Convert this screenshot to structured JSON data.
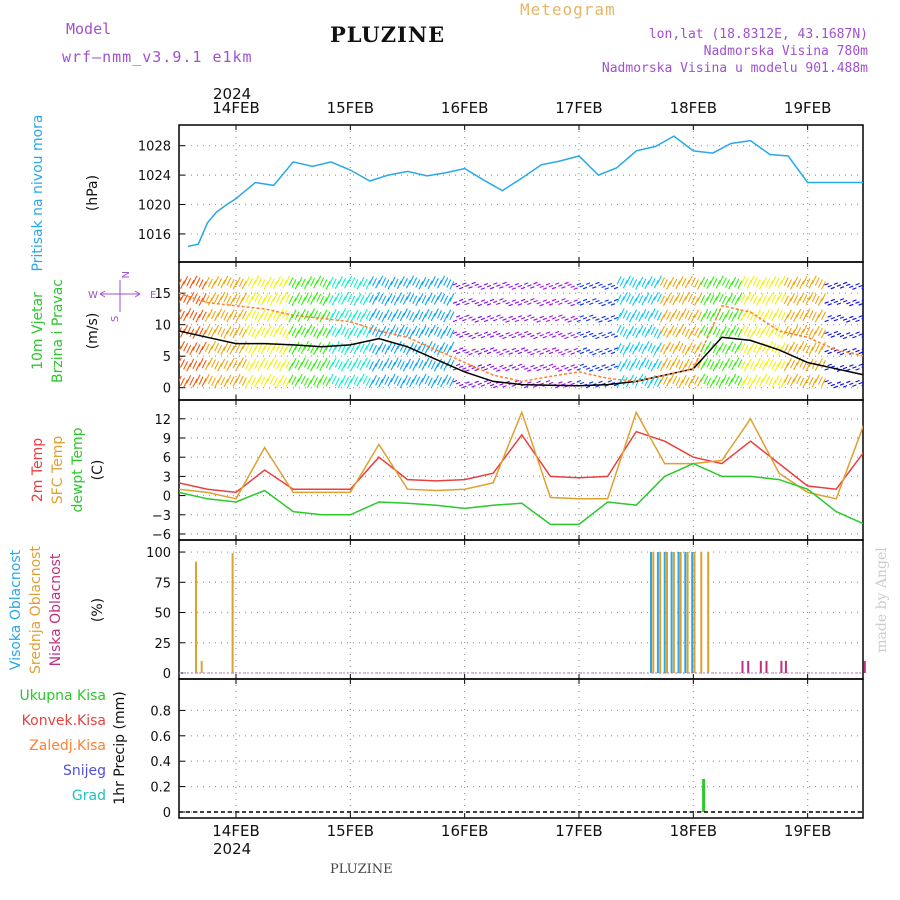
{
  "header": {
    "title": "PLUZINE",
    "model_label": "Model",
    "model_name": "wrf–nmm_v3.9.1  e1km",
    "meteogram_label": "Meteogram",
    "info_lines": [
      "lon,lat (18.8312E, 43.1687N)",
      "Nadmorska Visina 780m",
      "Nadmorska Visina u modelu 901.488m"
    ],
    "bottom_label": "PLUZINE",
    "watermark": "made by Angel"
  },
  "time_axis": {
    "year_top": "2024",
    "year_bottom": "2024",
    "start": "13FEB 14:00",
    "end": "19FEB 12:00",
    "ticks": [
      {
        "label": "14FEB",
        "day": 1
      },
      {
        "label": "15FEB",
        "day": 2
      },
      {
        "label": "16FEB",
        "day": 3
      },
      {
        "label": "17FEB",
        "day": 4
      },
      {
        "label": "18FEB",
        "day": 5
      },
      {
        "label": "19FEB",
        "day": 6
      }
    ]
  },
  "chart_data": [
    {
      "type": "line",
      "panel": "pressure",
      "ylabel_lines": [
        "Pritisak na nivou mora"
      ],
      "unit": "(hPa)",
      "ylim": [
        1013,
        1030
      ],
      "yticks": [
        1016,
        1020,
        1024,
        1028
      ],
      "grid": true,
      "x_days": [
        0.58,
        0.67,
        0.75,
        0.83,
        0.92,
        1.0,
        1.17,
        1.33,
        1.5,
        1.67,
        1.83,
        2.0,
        2.17,
        2.33,
        2.5,
        2.67,
        2.83,
        3.0,
        3.17,
        3.33,
        3.5,
        3.67,
        3.83,
        4.0,
        4.17,
        4.33,
        4.5,
        4.67,
        4.83,
        5.0,
        5.17,
        5.33,
        5.5,
        5.67,
        5.83,
        6.0,
        6.17,
        6.33,
        6.5
      ],
      "series": [
        {
          "name": "",
          "color": "#29a8e8",
          "values": [
            1014.3,
            1014.6,
            1017.5,
            1019.0,
            1020.0,
            1020.8,
            1023.0,
            1022.6,
            1025.8,
            1025.2,
            1025.8,
            1024.7,
            1023.2,
            1024.0,
            1024.5,
            1023.9,
            1024.3,
            1024.9,
            1023.3,
            1021.9,
            1023.6,
            1025.4,
            1025.9,
            1026.6,
            1024.0,
            1025.0,
            1027.3,
            1027.9,
            1029.3,
            1027.3,
            1027.0,
            1028.3,
            1028.7,
            1026.8,
            1026.6,
            1023.0,
            1023.0,
            1023.0,
            1023.0
          ]
        }
      ]
    },
    {
      "type": "line",
      "panel": "wind",
      "ylabel_lines": [
        "10m Vjetar",
        "Brzina i Pravac"
      ],
      "unit": "(m/s)",
      "ylim": [
        -1,
        19
      ],
      "yticks": [
        0,
        5,
        10,
        15
      ],
      "grid": true,
      "compass_legend": {
        "north": "N",
        "south": "S",
        "west": "W",
        "east": "E"
      },
      "x_days": [
        0.0,
        0.25,
        0.5,
        0.75,
        1.0,
        1.25,
        1.5,
        1.75,
        2.0,
        2.25,
        2.5,
        2.75,
        3.0,
        3.25,
        3.5,
        3.75,
        4.0,
        4.25,
        4.5,
        4.75,
        5.0,
        5.25,
        5.5,
        5.75,
        6.0,
        6.25,
        6.5
      ],
      "series": [
        {
          "name": "",
          "color": "#000000",
          "values": [
            11.0,
            10.0,
            9.0,
            8.0,
            7.0,
            7.0,
            6.8,
            6.5,
            6.8,
            7.8,
            6.5,
            4.5,
            2.5,
            1.0,
            0.5,
            0.4,
            0.3,
            0.5,
            1.0,
            2.0,
            3.0,
            8.0,
            7.5,
            6.0,
            4.0,
            3.0,
            2.0
          ]
        },
        {
          "name": "",
          "color": "#ff8030",
          "dashed": true,
          "values": [
            14.0,
            16.0,
            15.0,
            13.5,
            13.0,
            12.5,
            11.5,
            11.0,
            10.5,
            9.0,
            8.0,
            6.0,
            4.0,
            2.0,
            1.0,
            1.8,
            2.5,
            1.5,
            1.0,
            2.0,
            3.0,
            13.0,
            12.0,
            9.0,
            8.0,
            6.0,
            5.0
          ]
        }
      ]
    },
    {
      "type": "line",
      "panel": "temperature",
      "ylabel_lines": [
        "2m Temp",
        "SFC Temp",
        "dewpt Temp"
      ],
      "unit": "(C)",
      "ylim": [
        -6,
        14
      ],
      "yticks": [
        -6,
        -3,
        0,
        3,
        6,
        9,
        12
      ],
      "grid": true,
      "x_days": [
        0.0,
        0.25,
        0.5,
        0.75,
        1.0,
        1.25,
        1.5,
        1.75,
        2.0,
        2.25,
        2.5,
        2.75,
        3.0,
        3.25,
        3.5,
        3.75,
        4.0,
        4.25,
        4.5,
        4.75,
        5.0,
        5.25,
        5.5,
        5.75,
        6.0,
        6.25,
        6.5
      ],
      "series": [
        {
          "name": "2m Temp",
          "color": "#e84040",
          "values": [
            6.0,
            4.0,
            2.0,
            1.0,
            0.5,
            4.0,
            1.0,
            1.0,
            1.0,
            6.0,
            2.5,
            2.3,
            2.5,
            3.5,
            9.5,
            3.0,
            2.8,
            3.0,
            10.0,
            8.5,
            6.0,
            5.0,
            8.5,
            5.0,
            1.5,
            1.0,
            7.0
          ]
        },
        {
          "name": "SFC Temp",
          "color": "#e0a030",
          "values": [
            8.0,
            3.0,
            1.0,
            0.5,
            -0.5,
            7.5,
            0.5,
            0.5,
            0.5,
            8.0,
            1.0,
            0.8,
            1.0,
            2.0,
            13.0,
            -0.3,
            -0.5,
            -0.5,
            13.0,
            5.0,
            5.0,
            5.5,
            12.0,
            3.5,
            0.5,
            -0.5,
            11.5
          ]
        },
        {
          "name": "dewpt Temp",
          "color": "#2cc82c",
          "values": [
            1.0,
            1.5,
            0.5,
            -0.5,
            -1.0,
            0.8,
            -2.5,
            -3.0,
            -3.0,
            -1.0,
            -1.2,
            -1.5,
            -2.0,
            -1.5,
            -1.2,
            -4.5,
            -4.5,
            -1.0,
            -1.5,
            3.0,
            5.0,
            3.0,
            3.0,
            2.5,
            1.0,
            -2.5,
            -4.5
          ]
        }
      ]
    },
    {
      "type": "bar",
      "panel": "clouds",
      "ylabel_lines": [
        "Visoka Oblacnost",
        "Srednja Oblacnost",
        "Niska Oblacnost"
      ],
      "unit": "(%)",
      "ylim": [
        0,
        105
      ],
      "yticks": [
        0,
        25,
        50,
        75,
        100
      ],
      "grid": true,
      "series": [
        {
          "name": "Visoka Oblacnost",
          "color": "#29a8e8",
          "x_days": [
            4.63,
            4.69,
            4.75,
            4.81,
            4.87,
            4.93,
            4.99
          ],
          "values": [
            100,
            100,
            100,
            100,
            100,
            100,
            100
          ]
        },
        {
          "name": "Srednja Oblacnost",
          "color": "#e0a030",
          "x_days": [
            0.65,
            0.7,
            0.97,
            4.65,
            4.71,
            4.77,
            4.83,
            4.89,
            4.95,
            5.01,
            5.07,
            5.13
          ],
          "values": [
            92,
            10,
            99,
            100,
            100,
            100,
            100,
            100,
            100,
            100,
            100,
            100
          ]
        },
        {
          "name": "Niska Oblacnost",
          "color": "#c03080",
          "x_days": [
            5.43,
            5.48,
            5.59,
            5.64,
            5.77,
            5.81,
            6.5
          ],
          "values": [
            10,
            10,
            10,
            10,
            10,
            10,
            10
          ]
        }
      ]
    },
    {
      "type": "bar",
      "panel": "precipitation",
      "ylabel_lines": [
        "Ukupna Kisa",
        "Konvek.Kisa",
        "Zaledj.Kisa",
        "Snijeg",
        "Grad"
      ],
      "ylabel_colors": [
        "#2cc82c",
        "#e84040",
        "#ff8030",
        "#5050e0",
        "#20c0c0"
      ],
      "unit": "1hr Precip (mm)",
      "ylim": [
        0,
        1.0
      ],
      "yticks": [
        0,
        0.2,
        0.4,
        0.6,
        0.8
      ],
      "ytick_labels": [
        "0",
        "0.2",
        "0.4",
        "0.6",
        "0.8"
      ],
      "grid": true,
      "series": [
        {
          "name": "Ukupna Kisa",
          "color": "#2cc82c",
          "x_days": [
            5.09
          ],
          "values": [
            0.26
          ]
        }
      ]
    }
  ],
  "colors": {
    "model_text": "#a050d0",
    "meteogram_text": "#e6b566",
    "pressure_label": "#29a8e8",
    "wind_label": "#2cc82c",
    "temp_2m": "#e84040",
    "temp_sfc": "#e0a030",
    "temp_dew": "#2cc82c",
    "cloud_high": "#29a8e8",
    "cloud_mid": "#e0a030",
    "cloud_low": "#c03080"
  }
}
